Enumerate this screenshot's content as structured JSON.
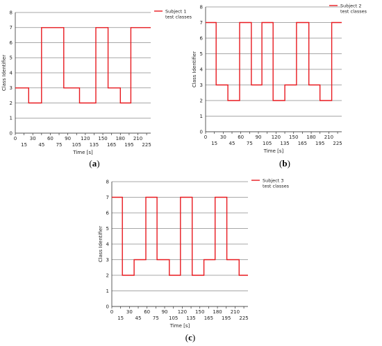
{
  "chart_data": [
    {
      "type": "line",
      "step": true,
      "caption_label": "(a)",
      "xlabel": "Time [s]",
      "ylabel": "Class Identifier",
      "xlim": [
        0,
        232
      ],
      "ylim": [
        0,
        8
      ],
      "x_ticks_row1": [
        0,
        30,
        60,
        90,
        120,
        150,
        180,
        210
      ],
      "x_ticks_row2": [
        15,
        45,
        75,
        105,
        135,
        165,
        195,
        225
      ],
      "y_ticks": [
        0,
        1,
        2,
        3,
        4,
        5,
        6,
        7,
        8
      ],
      "grid_horizontal": true,
      "legend_placement": "top-right-outside",
      "series": [
        {
          "name": "Subject 1\ntest classes",
          "color": "#e8191f",
          "x": [
            0,
            23,
            23,
            45,
            45,
            83,
            83,
            110,
            110,
            138,
            138,
            159,
            159,
            180,
            180,
            198,
            198,
            232
          ],
          "y": [
            3,
            3,
            2,
            2,
            7,
            7,
            3,
            3,
            2,
            2,
            7,
            7,
            3,
            3,
            2,
            2,
            7,
            7
          ]
        }
      ]
    },
    {
      "type": "line",
      "step": true,
      "caption_label": "(b)",
      "xlabel": "Time [s]",
      "ylabel": "Class Identifier",
      "xlim": [
        0,
        232
      ],
      "ylim": [
        0,
        8
      ],
      "x_ticks_row1": [
        0,
        30,
        60,
        90,
        120,
        150,
        180,
        210
      ],
      "x_ticks_row2": [
        15,
        45,
        75,
        105,
        135,
        165,
        195,
        225
      ],
      "y_ticks": [
        0,
        1,
        2,
        3,
        4,
        5,
        6,
        7,
        8
      ],
      "grid_horizontal": true,
      "legend_placement": "top-right-outside",
      "series": [
        {
          "name": "Subject 2\ntest classes",
          "color": "#e8191f",
          "x": [
            0,
            18,
            18,
            38,
            38,
            58,
            58,
            78,
            78,
            96,
            96,
            115,
            115,
            135,
            135,
            155,
            155,
            176,
            176,
            195,
            195,
            215,
            215,
            232
          ],
          "y": [
            7,
            7,
            3,
            3,
            2,
            2,
            7,
            7,
            3,
            3,
            7,
            7,
            2,
            2,
            3,
            3,
            7,
            7,
            3,
            3,
            2,
            2,
            7,
            7
          ]
        }
      ]
    },
    {
      "type": "line",
      "step": true,
      "caption_label": "(c)",
      "xlabel": "Time [s]",
      "ylabel": "Class Identifier",
      "xlim": [
        0,
        232
      ],
      "ylim": [
        0,
        8
      ],
      "x_ticks_row1": [
        0,
        30,
        60,
        90,
        120,
        150,
        180,
        210
      ],
      "x_ticks_row2": [
        15,
        45,
        75,
        105,
        135,
        165,
        195,
        225
      ],
      "y_ticks": [
        0,
        1,
        2,
        3,
        4,
        5,
        6,
        7,
        8
      ],
      "grid_horizontal": true,
      "legend_placement": "top-right-outside",
      "series": [
        {
          "name": "Subject 3\ntest classes",
          "color": "#e8191f",
          "x": [
            0,
            18,
            18,
            38,
            38,
            58,
            58,
            77,
            77,
            98,
            98,
            117,
            117,
            137,
            137,
            157,
            157,
            176,
            176,
            196,
            196,
            217,
            217,
            232
          ],
          "y": [
            7,
            7,
            2,
            2,
            3,
            3,
            7,
            7,
            3,
            3,
            2,
            2,
            7,
            7,
            2,
            2,
            3,
            3,
            7,
            7,
            3,
            3,
            2,
            2
          ]
        }
      ]
    }
  ]
}
